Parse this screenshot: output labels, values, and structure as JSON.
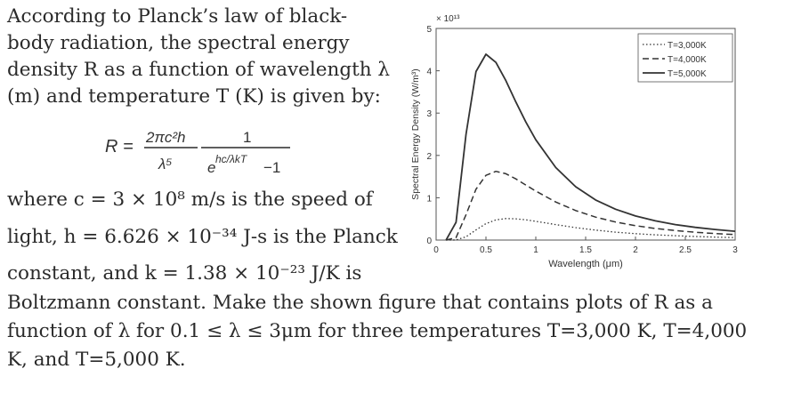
{
  "problem": {
    "lines_top": [
      "According to Planck’s law of black-",
      "body radiation, the spectral energy",
      "density R as a function of wavelength λ",
      "(m) and temperature T (K) is given by:"
    ],
    "formula": {
      "lhs": "R =",
      "num1": "2πc²h",
      "den1": "λ⁵",
      "num2": "1",
      "den2_base": "e",
      "den2_exp": "hc/λkT",
      "den2_tail": "−1"
    },
    "line_c": "where  c = 3 × 10⁸ m/s  is  the  speed  of",
    "line_h": "light,  h = 6.626 × 10⁻³⁴ J-s  is  the  Planck",
    "line_k": "constant,  and   k = 1.38 × 10⁻²³ J/K   is",
    "lines_bottom": [
      "Boltzmann constant. Make the shown figure that contains plots of R as a",
      "function of λ for  0.1 ≤ λ ≤ 3μm for three temperatures T=3,000 K, T=4,000",
      "K, and T=5,000 K."
    ]
  },
  "chart_data": {
    "type": "line",
    "title": "",
    "xlabel": "Wavelength (μm)",
    "ylabel": "Spectral Energy Density (W/m³)",
    "y_multiplier_label": "× 10¹³",
    "xlim": [
      0,
      3
    ],
    "ylim": [
      0,
      5
    ],
    "y_scale_factor": 10000000000000.0,
    "xticks": [
      "0",
      "0.5",
      "1",
      "1.5",
      "2",
      "2.5",
      "3"
    ],
    "yticks": [
      "0",
      "1",
      "2",
      "3",
      "4",
      "5"
    ],
    "legend_position": "top-right",
    "series": [
      {
        "name": "T=3,000K",
        "style": "dotted",
        "x": [
          0.1,
          0.2,
          0.3,
          0.4,
          0.5,
          0.6,
          0.7,
          0.8,
          0.9,
          1.0,
          1.2,
          1.4,
          1.6,
          1.8,
          2.0,
          2.2,
          2.4,
          2.6,
          2.8,
          3.0
        ],
        "y": [
          0,
          0.003,
          0.078,
          0.24,
          0.388,
          0.476,
          0.508,
          0.503,
          0.479,
          0.444,
          0.366,
          0.294,
          0.235,
          0.188,
          0.152,
          0.124,
          0.102,
          0.084,
          0.07,
          0.059
        ]
      },
      {
        "name": "T=4,000K",
        "style": "dashed",
        "x": [
          0.1,
          0.2,
          0.3,
          0.4,
          0.5,
          0.6,
          0.7,
          0.8,
          0.9,
          1.0,
          1.2,
          1.4,
          1.6,
          1.8,
          2.0,
          2.2,
          2.4,
          2.6,
          2.8,
          3.0
        ],
        "y": [
          0,
          0.058,
          0.599,
          1.201,
          1.53,
          1.623,
          1.567,
          1.445,
          1.301,
          1.158,
          0.9,
          0.697,
          0.543,
          0.426,
          0.34,
          0.274,
          0.224,
          0.185,
          0.154,
          0.13
        ]
      },
      {
        "name": "T=5,000K",
        "style": "solid",
        "x": [
          0.1,
          0.2,
          0.3,
          0.4,
          0.5,
          0.6,
          0.7,
          0.8,
          0.9,
          1.0,
          1.2,
          1.4,
          1.6,
          1.8,
          2.0,
          2.2,
          2.4,
          2.6,
          2.8,
          3.0
        ],
        "y": [
          0,
          0.421,
          2.498,
          3.981,
          4.39,
          4.198,
          3.767,
          3.263,
          2.79,
          2.37,
          1.714,
          1.261,
          0.948,
          0.728,
          0.569,
          0.453,
          0.366,
          0.3,
          0.249,
          0.209
        ]
      }
    ]
  }
}
